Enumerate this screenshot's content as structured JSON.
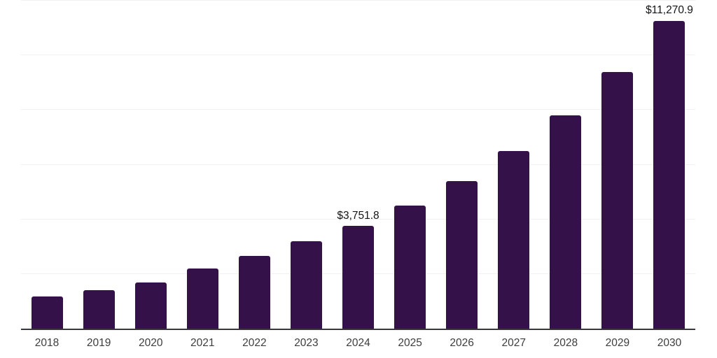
{
  "chart_data": {
    "type": "bar",
    "title": "",
    "xlabel": "",
    "ylabel": "",
    "categories": [
      "2018",
      "2019",
      "2020",
      "2021",
      "2022",
      "2023",
      "2024",
      "2025",
      "2026",
      "2027",
      "2028",
      "2029",
      "2030"
    ],
    "values": [
      1190,
      1400,
      1680,
      2200,
      2670,
      3190,
      3751.8,
      4510,
      5410,
      6500,
      7810,
      9380,
      11270.9
    ],
    "value_labels": [
      "",
      "",
      "",
      "",
      "",
      "",
      "$3,751.8",
      "",
      "",
      "",
      "",
      "",
      "$11,270.9"
    ],
    "ylim": [
      0,
      12000
    ],
    "gridline_step": 2000,
    "grid": true,
    "legend": false,
    "colors": {
      "bar": "#341149",
      "axis_line": "#38383a",
      "gridline": "#f1f1f1",
      "tick_label": "#3d3d3d",
      "data_label": "#141414",
      "background": "#ffffff"
    }
  }
}
